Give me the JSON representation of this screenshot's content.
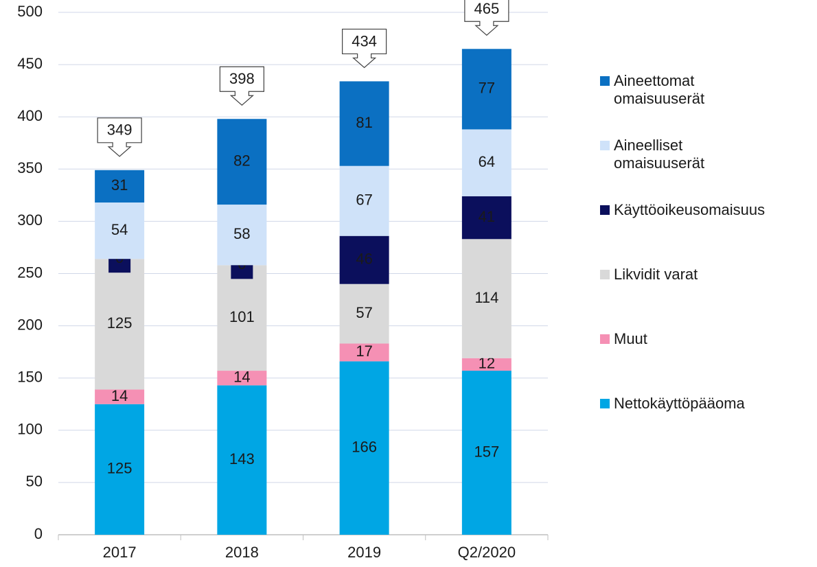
{
  "chart_data": {
    "type": "stacked_bar",
    "categories": [
      "2017",
      "2018",
      "2019",
      "Q2/2020"
    ],
    "series": [
      {
        "name": "Nettokäyttöpääoma",
        "color": "#00a6e4",
        "values": [
          125,
          143,
          166,
          157
        ]
      },
      {
        "name": "Muut",
        "color": "#f590b4",
        "values": [
          14,
          14,
          17,
          12
        ]
      },
      {
        "name": "Likvidit varat",
        "color": "#d9d9d9",
        "values": [
          125,
          101,
          57,
          114
        ]
      },
      {
        "name": "Käyttöoikeusomaisuus",
        "color": "#0b0f5c",
        "values": [
          0,
          0,
          46,
          41
        ]
      },
      {
        "name": "Aineelliset omaisuuserät",
        "color": "#cfe2f9",
        "values": [
          54,
          58,
          67,
          64
        ]
      },
      {
        "name": "Aineettomat omaisuuserät",
        "color": "#0b70c2",
        "values": [
          31,
          82,
          81,
          77
        ]
      }
    ],
    "totals": [
      349,
      398,
      434,
      465
    ],
    "ylim": [
      0,
      500
    ],
    "yticks": [
      0,
      50,
      100,
      150,
      200,
      250,
      300,
      350,
      400,
      450,
      500
    ],
    "grid": true,
    "legend": "right"
  }
}
